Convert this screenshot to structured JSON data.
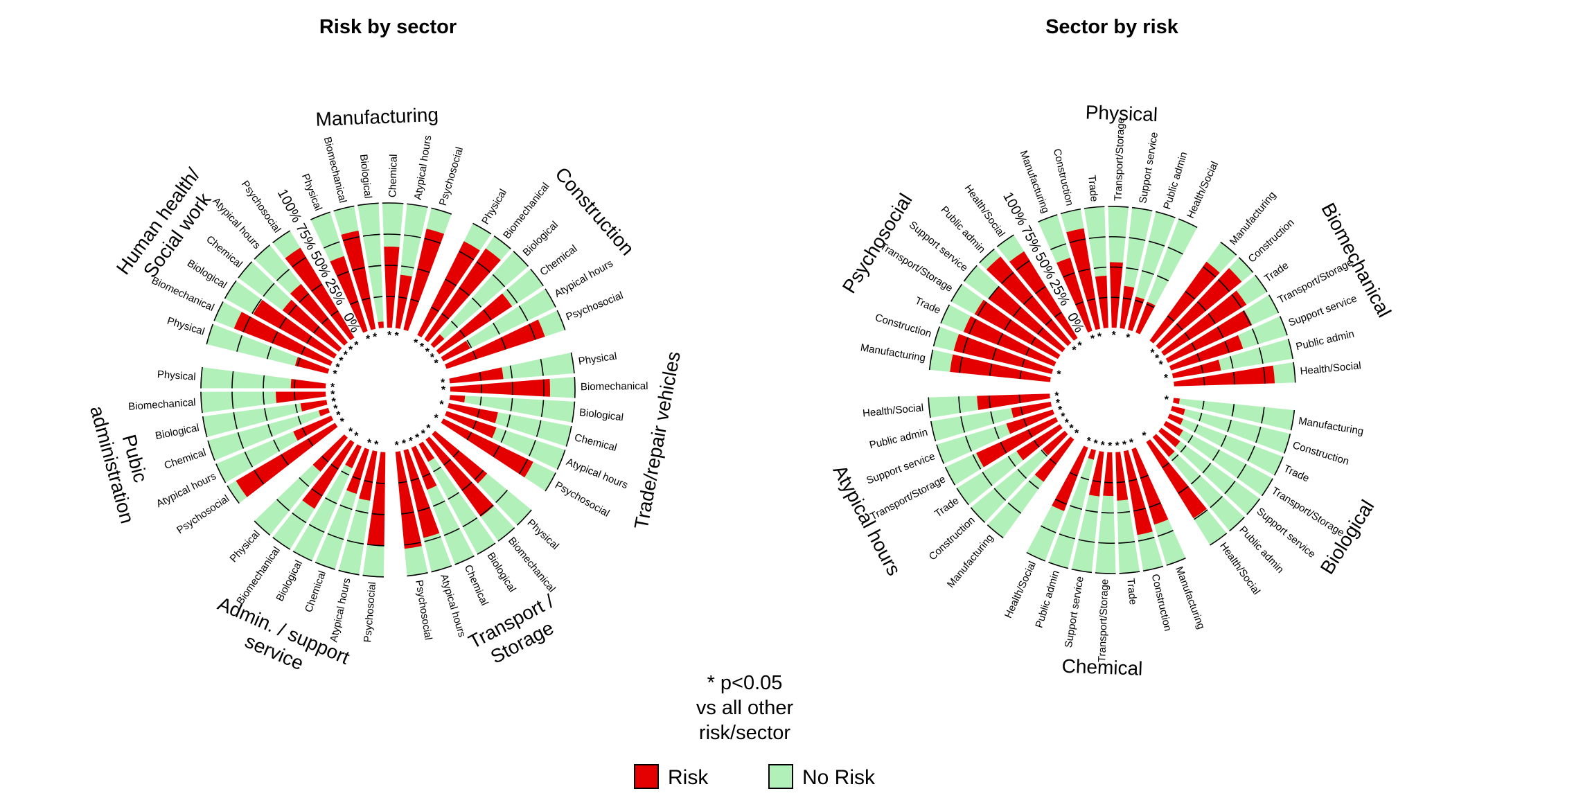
{
  "colors": {
    "risk": "#e50000",
    "no_risk": "#b2f0b9",
    "outline": "#000000"
  },
  "axis_ticks": [
    "0%",
    "25%",
    "50%",
    "75%",
    "100%"
  ],
  "note": {
    "line1": "* p<0.05",
    "line2": "vs all other",
    "line3": "risk/sector"
  },
  "legend": {
    "risk": "Risk",
    "no_risk": "No Risk"
  },
  "chart_data": [
    {
      "type": "radial-stacked-bar",
      "title": "Risk by sector",
      "unit": "%",
      "ylim": [
        0,
        100
      ],
      "groups": [
        {
          "label_lines": [
            "Manufacturing"
          ],
          "bars": [
            {
              "label": "Physical",
              "value": 63,
              "sig": true
            },
            {
              "label": "Biomechanical",
              "value": 80,
              "sig": true
            },
            {
              "label": "Biological",
              "value": 5,
              "sig": false
            },
            {
              "label": "Chemical",
              "value": 65,
              "sig": true
            },
            {
              "label": "Atypical hours",
              "value": 43,
              "sig": true
            },
            {
              "label": "Psychosocial",
              "value": 83,
              "sig": false
            }
          ]
        },
        {
          "label_lines": [
            "Construction"
          ],
          "bars": [
            {
              "label": "Physical",
              "value": 84,
              "sig": true
            },
            {
              "label": "Biomechanical",
              "value": 88,
              "sig": true
            },
            {
              "label": "Biological",
              "value": 11,
              "sig": true
            },
            {
              "label": "Chemical",
              "value": 70,
              "sig": true
            },
            {
              "label": "Atypical hours",
              "value": 24,
              "sig": true
            },
            {
              "label": "Psychosocial",
              "value": 83,
              "sig": false
            }
          ]
        },
        {
          "label_lines": [
            "Trade/repair vehicles"
          ],
          "bars": [
            {
              "label": "Physical",
              "value": 43,
              "sig": true
            },
            {
              "label": "Biomechanical",
              "value": 80,
              "sig": true
            },
            {
              "label": "Biological",
              "value": 12,
              "sig": false
            },
            {
              "label": "Chemical",
              "value": 40,
              "sig": true
            },
            {
              "label": "Atypical hours",
              "value": 42,
              "sig": false
            },
            {
              "label": "Psychosocial",
              "value": 80,
              "sig": true
            }
          ]
        },
        {
          "label_lines": [
            "Transport /",
            "Storage"
          ],
          "bars": [
            {
              "label": "Physical",
              "value": 54,
              "sig": true
            },
            {
              "label": "Biomechanical",
              "value": 76,
              "sig": true
            },
            {
              "label": "Biological",
              "value": 16,
              "sig": true
            },
            {
              "label": "Chemical",
              "value": 36,
              "sig": true
            },
            {
              "label": "Atypical hours",
              "value": 72,
              "sig": true
            },
            {
              "label": "Psychosocial",
              "value": 78,
              "sig": true
            }
          ]
        },
        {
          "label_lines": [
            "Admin. / support",
            "service"
          ],
          "bars": [
            {
              "label": "Psychosocial",
              "value": 75,
              "sig": false
            },
            {
              "label": "Atypical hours",
              "value": 40,
              "sig": true
            },
            {
              "label": "Chemical",
              "value": 37,
              "sig": true
            },
            {
              "label": "Biological",
              "value": 19,
              "sig": false
            },
            {
              "label": "Biomechanical",
              "value": 62,
              "sig": true
            },
            {
              "label": "Physical",
              "value": 35,
              "sig": true
            }
          ]
        },
        {
          "label_lines": [
            "Pubic",
            "administration"
          ],
          "bars": [
            {
              "label": "Psychosocial",
              "value": 92,
              "sig": true
            },
            {
              "label": "Atypical hours",
              "value": 33,
              "sig": true
            },
            {
              "label": "Chemical",
              "value": 8,
              "sig": true
            },
            {
              "label": "Biological",
              "value": 21,
              "sig": true
            },
            {
              "label": "Biomechanical",
              "value": 40,
              "sig": true
            },
            {
              "label": "Physical",
              "value": 28,
              "sig": true
            }
          ]
        },
        {
          "label_lines": [
            "Human health/",
            "Social work"
          ],
          "bars": [
            {
              "label": "Physical",
              "value": 27,
              "sig": true
            },
            {
              "label": "Biomechanical",
              "value": 83,
              "sig": true
            },
            {
              "label": "Biological",
              "value": 74,
              "sig": true
            },
            {
              "label": "Chemical",
              "value": 56,
              "sig": true
            },
            {
              "label": "Atypical hours",
              "value": 60,
              "sig": true
            },
            {
              "label": "Psychosocial",
              "value": 84,
              "sig": true
            }
          ]
        }
      ]
    },
    {
      "type": "radial-stacked-bar",
      "title": "Sector by risk",
      "unit": "%",
      "ylim": [
        0,
        100
      ],
      "groups": [
        {
          "label_lines": [
            "Physical"
          ],
          "bars": [
            {
              "label": "Manufacturing",
              "value": 63,
              "sig": true
            },
            {
              "label": "Construction",
              "value": 84,
              "sig": true
            },
            {
              "label": "Trade",
              "value": 43,
              "sig": false
            },
            {
              "label": "Transport/Storage",
              "value": 54,
              "sig": true
            },
            {
              "label": "Support service",
              "value": 35,
              "sig": false
            },
            {
              "label": "Public admin",
              "value": 28,
              "sig": true
            },
            {
              "label": "Health/Social",
              "value": 27,
              "sig": false
            }
          ]
        },
        {
          "label_lines": [
            "Biomechanical"
          ],
          "bars": [
            {
              "label": "Manufacturing",
              "value": 80,
              "sig": false
            },
            {
              "label": "Construction",
              "value": 88,
              "sig": true
            },
            {
              "label": "Trade",
              "value": 80,
              "sig": true
            },
            {
              "label": "Transport/Storage",
              "value": 76,
              "sig": true
            },
            {
              "label": "Support service",
              "value": 62,
              "sig": false
            },
            {
              "label": "Public admin",
              "value": 40,
              "sig": true
            },
            {
              "label": "Health/Social",
              "value": 83,
              "sig": false
            }
          ]
        },
        {
          "label_lines": [
            "Biological"
          ],
          "bars": [
            {
              "label": "Manufacturing",
              "value": 5,
              "sig": true
            },
            {
              "label": "Construction",
              "value": 11,
              "sig": false
            },
            {
              "label": "Trade",
              "value": 12,
              "sig": false
            },
            {
              "label": "Transport/Storage",
              "value": 16,
              "sig": false
            },
            {
              "label": "Support service",
              "value": 19,
              "sig": false
            },
            {
              "label": "Public admin",
              "value": 21,
              "sig": false
            },
            {
              "label": "Health/Social",
              "value": 74,
              "sig": true
            }
          ]
        },
        {
          "label_lines": [
            "Chemical"
          ],
          "bars": [
            {
              "label": "Manufacturing",
              "value": 65,
              "sig": true
            },
            {
              "label": "Construction",
              "value": 70,
              "sig": true
            },
            {
              "label": "Trade",
              "value": 40,
              "sig": true
            },
            {
              "label": "Transport/Storage",
              "value": 36,
              "sig": true
            },
            {
              "label": "Support service",
              "value": 37,
              "sig": true
            },
            {
              "label": "Public admin",
              "value": 8,
              "sig": true
            },
            {
              "label": "Health/Social",
              "value": 56,
              "sig": true
            }
          ]
        },
        {
          "label_lines": [
            "Atypical hours"
          ],
          "bars": [
            {
              "label": "Manufacturing",
              "value": 43,
              "sig": true
            },
            {
              "label": "Construction",
              "value": 24,
              "sig": true
            },
            {
              "label": "Trade",
              "value": 42,
              "sig": true
            },
            {
              "label": "Transport/Storage",
              "value": 72,
              "sig": true
            },
            {
              "label": "Support service",
              "value": 40,
              "sig": true
            },
            {
              "label": "Public admin",
              "value": 33,
              "sig": true
            },
            {
              "label": "Health/Social",
              "value": 60,
              "sig": true
            }
          ]
        },
        {
          "label_lines": [
            "Psychosocial"
          ],
          "bars": [
            {
              "label": "Manufacturing",
              "value": 83,
              "sig": false
            },
            {
              "label": "Construction",
              "value": 83,
              "sig": true
            },
            {
              "label": "Trade",
              "value": 80,
              "sig": false
            },
            {
              "label": "Transport/Storage",
              "value": 78,
              "sig": false
            },
            {
              "label": "Support service",
              "value": 75,
              "sig": false
            },
            {
              "label": "Public admin",
              "value": 92,
              "sig": true
            },
            {
              "label": "Health/Social",
              "value": 84,
              "sig": true
            }
          ]
        }
      ]
    }
  ]
}
